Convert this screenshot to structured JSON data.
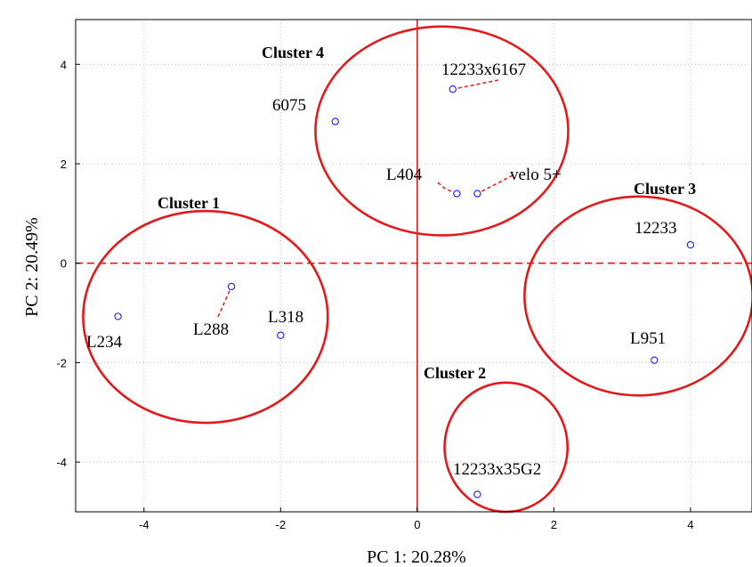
{
  "chart_data": {
    "type": "scatter",
    "xlabel": "PC 1: 20.28%",
    "ylabel": "PC 2: 20.49%",
    "xlim": [
      -5,
      4.9
    ],
    "ylim": [
      -5,
      4.9
    ],
    "x_ticks": [
      "-4",
      "-2",
      "0",
      "2",
      "4"
    ],
    "y_ticks": [
      "-4",
      "-2",
      "0",
      "2",
      "4"
    ],
    "grid": true,
    "reference_lines": {
      "x": 0,
      "y": 0
    },
    "point_color": "#1a1aff",
    "cluster_color": "#e31a1c",
    "points": [
      {
        "label": "6075",
        "x": -1.2,
        "y": 2.85
      },
      {
        "label": "12233x6167",
        "x": 0.52,
        "y": 3.5
      },
      {
        "label": "L404",
        "x": 0.58,
        "y": 1.4
      },
      {
        "label": "velo 5+",
        "x": 0.88,
        "y": 1.4
      },
      {
        "label": "12233",
        "x": 4.0,
        "y": 0.37
      },
      {
        "label": "L951",
        "x": 3.47,
        "y": -1.95
      },
      {
        "label": "12233x35G2",
        "x": 0.88,
        "y": -4.65
      },
      {
        "label": "L234",
        "x": -4.38,
        "y": -1.07
      },
      {
        "label": "L288",
        "x": -2.72,
        "y": -0.47
      },
      {
        "label": "L318",
        "x": -2.0,
        "y": -1.45
      }
    ],
    "clusters": [
      {
        "label": "Cluster 1",
        "cx": -3.1,
        "cy": -1.08,
        "rx": 1.79,
        "ry": 2.13
      },
      {
        "label": "Cluster 2",
        "cx": 1.3,
        "cy": -3.7,
        "rx": 0.9,
        "ry": 1.3
      },
      {
        "label": "Cluster 3",
        "cx": 3.24,
        "cy": -0.66,
        "rx": 1.67,
        "ry": 2.0
      },
      {
        "label": "Cluster 4",
        "cx": 0.36,
        "cy": 2.66,
        "rx": 1.85,
        "ry": 2.1
      }
    ]
  }
}
